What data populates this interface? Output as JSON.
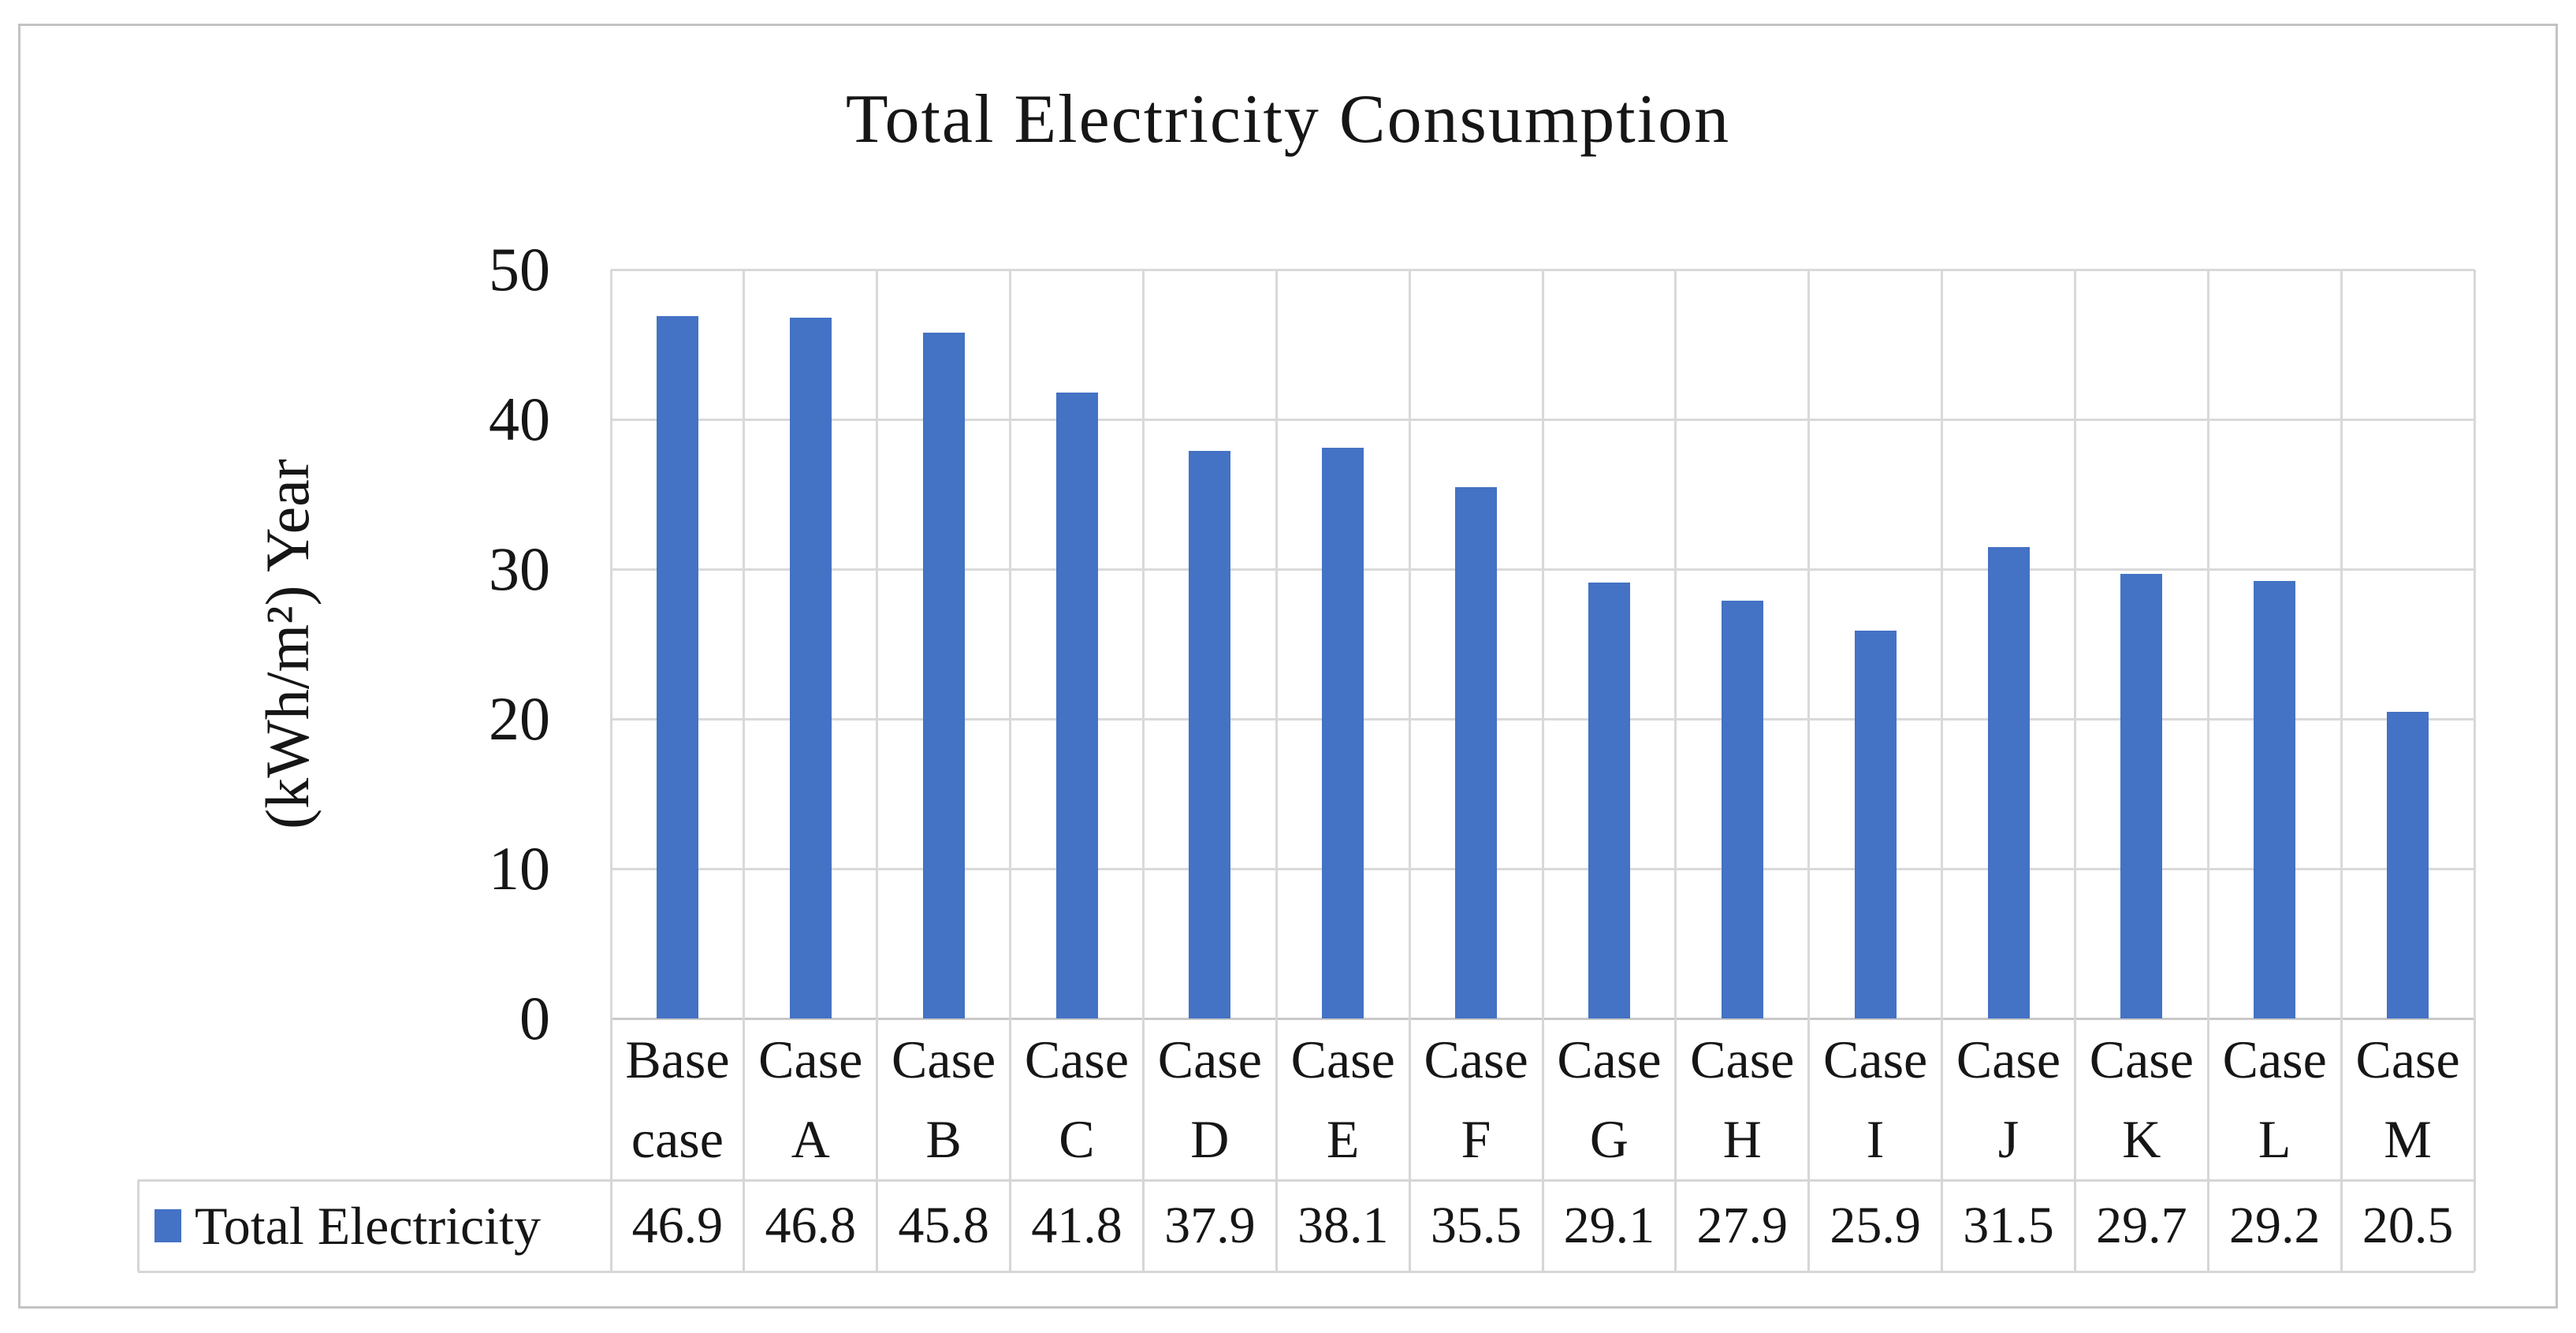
{
  "chart_data": {
    "type": "bar",
    "title": "Total Electricity Consumption",
    "xlabel": "",
    "ylabel": "(kWh/m²) Year",
    "categories": [
      "Base case",
      "Case A",
      "Case B",
      "Case C",
      "Case D",
      "Case E",
      "Case F",
      "Case G",
      "Case H",
      "Case I",
      "Case J",
      "Case K",
      "Case L",
      "Case M"
    ],
    "series": [
      {
        "name": "Total Electricity",
        "values": [
          46.9,
          46.8,
          45.8,
          41.8,
          37.9,
          38.1,
          35.5,
          29.1,
          27.9,
          25.9,
          31.5,
          29.7,
          29.2,
          20.5
        ],
        "color": "#4472c4"
      }
    ],
    "ylim": [
      0,
      50
    ],
    "yticks": [
      0,
      10,
      20,
      30,
      40,
      50
    ],
    "grid": "on",
    "legend_position": "data-table-left",
    "data_table_shown": true
  },
  "colors": {
    "bar": "#4472c4",
    "gridline": "#d9d9d9",
    "axis_line": "#c9c9c9",
    "table_border": "#d6d6d6",
    "frame_border": "#c3c3c3",
    "text": "#161616",
    "background": "#ffffff"
  }
}
